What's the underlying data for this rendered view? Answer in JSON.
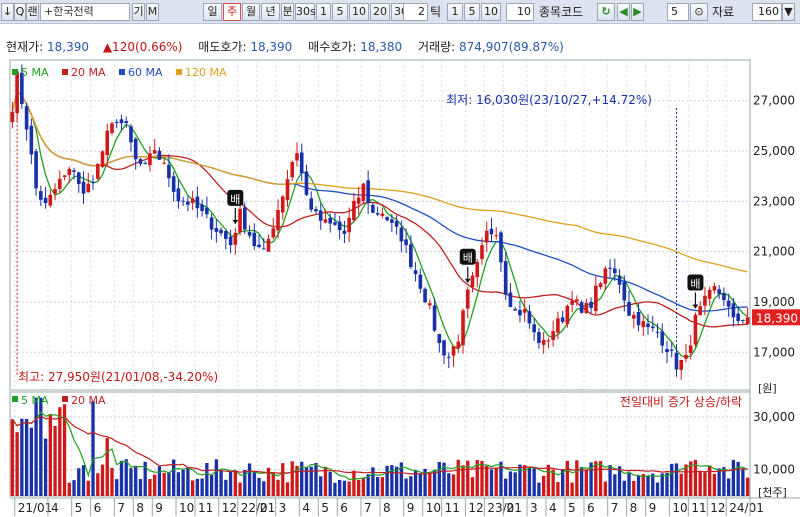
{
  "toolbar": {
    "code": "↓",
    "search_icon": "Q",
    "mode": "랜",
    "stock_name": "+한국전력",
    "gi": "기",
    "m": "M",
    "periods": [
      "일",
      "주",
      "월",
      "년",
      "분",
      "30s",
      "1",
      "5",
      "10",
      "20",
      "30"
    ],
    "active_period": "주",
    "tick_value": "2",
    "tick_label": "틱",
    "tick_opts": [
      "1",
      "5",
      "10"
    ],
    "tick_input": "10",
    "code_label": "종목코드",
    "count_value": "5",
    "data_label": "자료",
    "data_count": "160",
    "refresh_icon": "refresh-icon",
    "colors": {
      "toolbar_bg": "#dce3ee",
      "active": "#d01010"
    }
  },
  "info": {
    "price_label": "현재가:",
    "price": "18,390",
    "change": "▲120(0.66%)",
    "ask_label": "매도호가:",
    "ask": "18,390",
    "bid_label": "매수호가:",
    "bid": "18,380",
    "vol_label": "거래량:",
    "vol": "874,907(89.87%)"
  },
  "chart_data": {
    "type": "candlestick",
    "legend": [
      {
        "name": "5 MA",
        "color": "#22a022"
      },
      {
        "name": "20 MA",
        "color": "#c02020"
      },
      {
        "name": "60 MA",
        "color": "#2050c0"
      },
      {
        "name": "120 MA",
        "color": "#e0a020"
      }
    ],
    "vol_legend": [
      {
        "name": "5 MA",
        "color": "#22a022"
      },
      {
        "name": "20 MA",
        "color": "#c02020"
      }
    ],
    "price_axis": {
      "ticks": [
        "27,000",
        "25,000",
        "23,000",
        "21,000",
        "19,000",
        "17,000"
      ],
      "values": [
        27000,
        25000,
        23000,
        21000,
        19000,
        17000
      ],
      "ymin": 15500,
      "ymax": 28300,
      "unit": "[원]"
    },
    "current_price": "18,390",
    "current_value": 18390,
    "vol_axis": {
      "ticks": [
        "30,000",
        "10,000"
      ],
      "values": [
        30000,
        10000
      ],
      "max": 38000,
      "unit": "[천주]"
    },
    "vol_title": "전일대비 증가 상승/하락",
    "annotations": {
      "low": "최저: 16,030원(23/10/27,+14.72%)",
      "high": "최고: 27,950원(21/01/08,-34.20%)",
      "low_value": 16030,
      "high_value": 27950,
      "markers": [
        "배",
        "배",
        "배"
      ]
    },
    "x_labels": [
      "21/01",
      "4",
      "5",
      "6",
      "7",
      "8",
      "9",
      "10",
      "11",
      "12",
      "22/01",
      "2",
      "3",
      "4",
      "5",
      "6",
      "7",
      "8",
      "9",
      "10",
      "11",
      "12",
      "23/01",
      "2",
      "3",
      "4",
      "5",
      "6",
      "7",
      "8",
      "9",
      "10",
      "11",
      "12",
      "24/01"
    ],
    "x_label_weeks": [
      1,
      8,
      13,
      17,
      22,
      26,
      30,
      35,
      39,
      44,
      48,
      52,
      56,
      61,
      65,
      69,
      74,
      78,
      83,
      87,
      91,
      96,
      100,
      104,
      109,
      113,
      117,
      121,
      126,
      130,
      134,
      139,
      143,
      147,
      151
    ],
    "weeks": 156,
    "keypoints": [
      [
        0,
        26800
      ],
      [
        1,
        27950
      ],
      [
        3,
        26000
      ],
      [
        5,
        23500
      ],
      [
        7,
        22800
      ],
      [
        10,
        23800
      ],
      [
        13,
        24300
      ],
      [
        15,
        23200
      ],
      [
        18,
        24400
      ],
      [
        20,
        25600
      ],
      [
        22,
        26300
      ],
      [
        24,
        25900
      ],
      [
        26,
        24600
      ],
      [
        28,
        24300
      ],
      [
        30,
        25100
      ],
      [
        33,
        24000
      ],
      [
        35,
        23100
      ],
      [
        38,
        22900
      ],
      [
        41,
        22300
      ],
      [
        44,
        21700
      ],
      [
        46,
        21300
      ],
      [
        48,
        22500
      ],
      [
        51,
        21300
      ],
      [
        53,
        20900
      ],
      [
        55,
        22100
      ],
      [
        57,
        23300
      ],
      [
        59,
        24600
      ],
      [
        60,
        25000
      ],
      [
        62,
        23200
      ],
      [
        64,
        22400
      ],
      [
        66,
        22100
      ],
      [
        68,
        22000
      ],
      [
        70,
        21700
      ],
      [
        72,
        22800
      ],
      [
        74,
        23600
      ],
      [
        76,
        22500
      ],
      [
        78,
        22600
      ],
      [
        80,
        22000
      ],
      [
        82,
        21600
      ],
      [
        84,
        20600
      ],
      [
        86,
        19700
      ],
      [
        88,
        18700
      ],
      [
        90,
        17300
      ],
      [
        92,
        16800
      ],
      [
        94,
        17600
      ],
      [
        96,
        19300
      ],
      [
        98,
        20400
      ],
      [
        100,
        21700
      ],
      [
        102,
        21900
      ],
      [
        104,
        19500
      ],
      [
        106,
        18600
      ],
      [
        108,
        18600
      ],
      [
        110,
        17700
      ],
      [
        112,
        17300
      ],
      [
        114,
        17900
      ],
      [
        116,
        18400
      ],
      [
        118,
        19300
      ],
      [
        120,
        18500
      ],
      [
        122,
        19000
      ],
      [
        124,
        19900
      ],
      [
        126,
        20300
      ],
      [
        128,
        19800
      ],
      [
        130,
        18600
      ],
      [
        132,
        18300
      ],
      [
        134,
        17900
      ],
      [
        136,
        17800
      ],
      [
        138,
        17200
      ],
      [
        140,
        16500
      ],
      [
        142,
        16700
      ],
      [
        144,
        18300
      ],
      [
        146,
        19000
      ],
      [
        148,
        19500
      ],
      [
        150,
        19200
      ],
      [
        152,
        18200
      ],
      [
        154,
        18390
      ]
    ]
  }
}
